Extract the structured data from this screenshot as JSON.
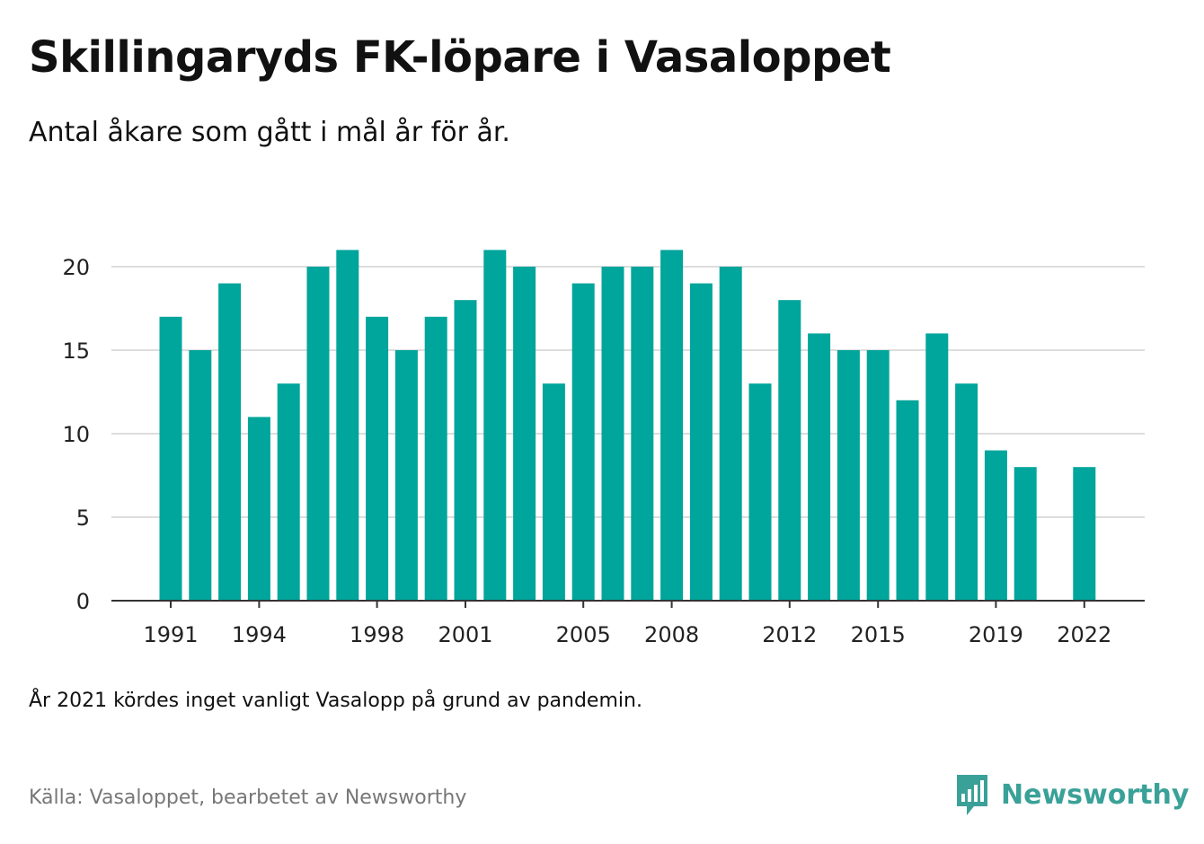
{
  "header": {
    "title": "Skillingaryds FK-löpare i Vasaloppet",
    "subtitle": "Antal åkare som gått i mål år för år."
  },
  "footer": {
    "note": "År 2021 kördes inget vanligt Vasalopp på grund av pandemin.",
    "source": "Källa: Vasaloppet, bearbetet av Newsworthy",
    "brand": "Newsworthy"
  },
  "colors": {
    "bar": "#00a59b",
    "grid": "#dddddd",
    "axis": "#333333",
    "brand": "#3aa198"
  },
  "icons": {
    "logo": "newsworthy-bar-chart-bubble-icon"
  },
  "chart_data": {
    "type": "bar",
    "categories": [
      1991,
      1992,
      1993,
      1994,
      1995,
      1996,
      1997,
      1998,
      1999,
      2000,
      2001,
      2002,
      2003,
      2004,
      2005,
      2006,
      2007,
      2008,
      2009,
      2010,
      2011,
      2012,
      2013,
      2014,
      2015,
      2016,
      2017,
      2018,
      2019,
      2020,
      2021,
      2022
    ],
    "values": [
      17,
      15,
      19,
      11,
      13,
      20,
      21,
      17,
      15,
      17,
      18,
      21,
      20,
      13,
      19,
      20,
      20,
      21,
      19,
      20,
      13,
      18,
      16,
      15,
      15,
      12,
      16,
      13,
      9,
      8,
      null,
      8
    ],
    "x_tick_labels": [
      "1991",
      "1994",
      "1998",
      "2001",
      "2005",
      "2008",
      "2012",
      "2015",
      "2019",
      "2022"
    ],
    "y_ticks": [
      0,
      5,
      10,
      15,
      20
    ],
    "ylim": [
      0,
      21
    ],
    "grid": "horizontal",
    "legend": "none",
    "xlabel": "",
    "ylabel": ""
  }
}
